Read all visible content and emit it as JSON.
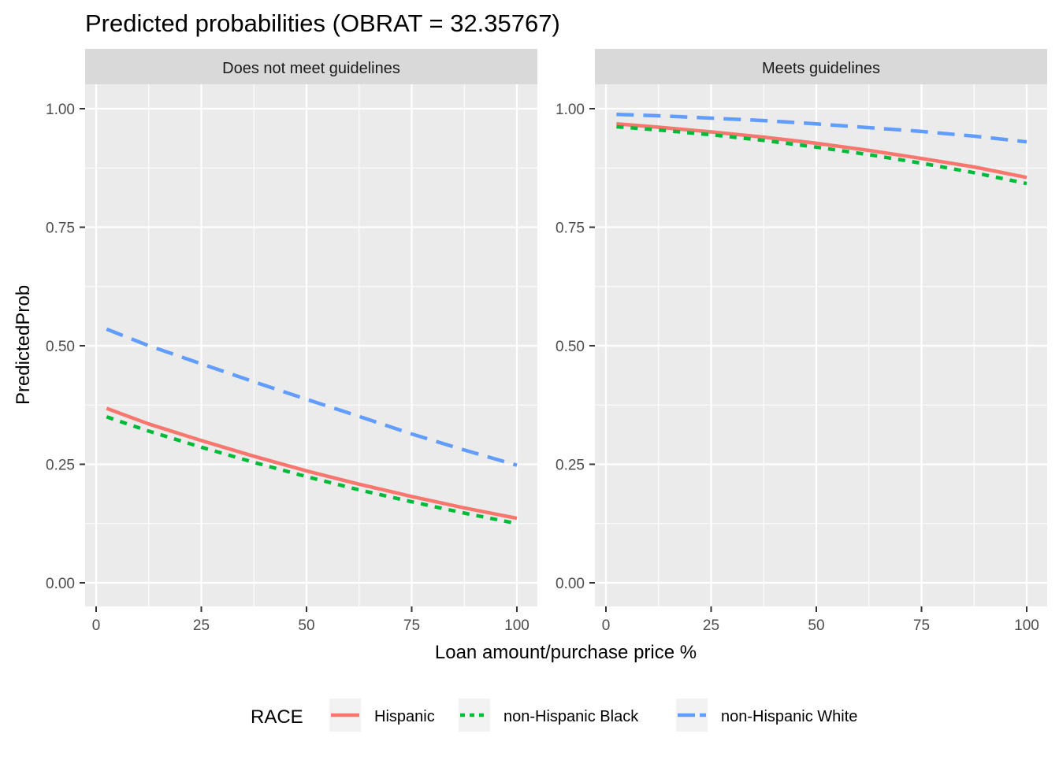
{
  "chart_data": {
    "type": "line",
    "title": "Predicted probabilities (OBRAT = 32.35767)",
    "xlabel": "Loan amount/purchase price %",
    "ylabel": "PredictedProb",
    "xlim": [
      0,
      100
    ],
    "ylim": [
      0,
      1
    ],
    "x_ticks": [
      0,
      25,
      50,
      75,
      100
    ],
    "x_tick_labels": [
      "0",
      "25",
      "50",
      "75",
      "100"
    ],
    "y_ticks": [
      0,
      0.25,
      0.5,
      0.75,
      1
    ],
    "y_tick_labels": [
      "0.00",
      "0.25",
      "0.50",
      "0.75",
      "1.00"
    ],
    "grid": true,
    "legend": {
      "title": "RACE",
      "position": "bottom",
      "entries": [
        "Hispanic",
        "non-Hispanic Black",
        "non-Hispanic White"
      ]
    },
    "series_styles": [
      {
        "name": "Hispanic",
        "color": "#F8766D",
        "dash": "solid"
      },
      {
        "name": "non-Hispanic Black",
        "color": "#00BA38",
        "dash": "dotted"
      },
      {
        "name": "non-Hispanic White",
        "color": "#619CFF",
        "dash": "dashed"
      }
    ],
    "panels": [
      {
        "label": "Does not meet guidelines",
        "x": [
          2.5,
          12.5,
          25,
          37.5,
          50,
          62.5,
          75,
          87.5,
          100
        ],
        "series": [
          {
            "name": "Hispanic",
            "values": [
              0.368,
              0.335,
              0.3,
              0.267,
              0.236,
              0.208,
              0.182,
              0.158,
              0.136
            ]
          },
          {
            "name": "non-Hispanic Black",
            "values": [
              0.35,
              0.32,
              0.286,
              0.254,
              0.224,
              0.196,
              0.171,
              0.147,
              0.125
            ]
          },
          {
            "name": "non-Hispanic White",
            "values": [
              0.535,
              0.5,
              0.462,
              0.424,
              0.387,
              0.351,
              0.314,
              0.28,
              0.248
            ]
          }
        ]
      },
      {
        "label": "Meets guidelines",
        "x": [
          2.5,
          12.5,
          25,
          37.5,
          50,
          62.5,
          75,
          87.5,
          100
        ],
        "series": [
          {
            "name": "Hispanic",
            "values": [
              0.968,
              0.961,
              0.951,
              0.94,
              0.927,
              0.912,
              0.895,
              0.877,
              0.855
            ]
          },
          {
            "name": "non-Hispanic Black",
            "values": [
              0.962,
              0.955,
              0.945,
              0.933,
              0.919,
              0.903,
              0.885,
              0.865,
              0.842
            ]
          },
          {
            "name": "non-Hispanic White",
            "values": [
              0.988,
              0.985,
              0.98,
              0.975,
              0.968,
              0.96,
              0.952,
              0.942,
              0.93
            ]
          }
        ]
      }
    ]
  }
}
